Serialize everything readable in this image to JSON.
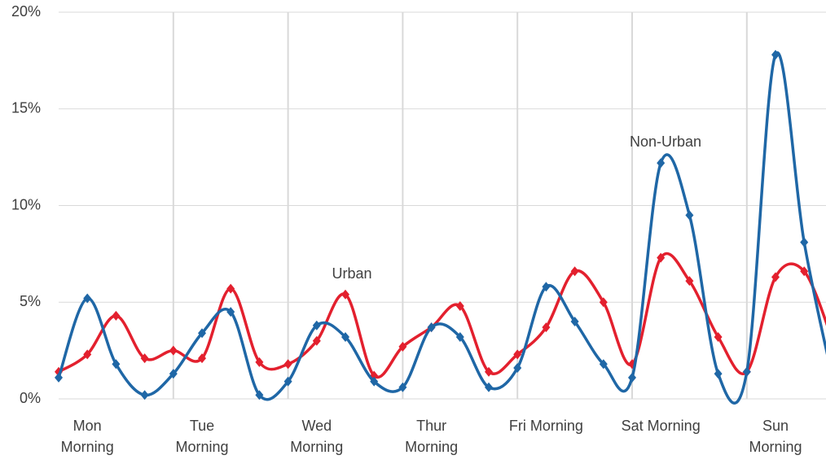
{
  "chart_data": {
    "type": "line",
    "smooth": true,
    "grid": true,
    "categories": [
      null,
      "Mon Morning",
      null,
      null,
      null,
      "Tue Morning",
      null,
      null,
      null,
      "Wed Morning",
      null,
      null,
      null,
      "Thur Morning",
      null,
      null,
      null,
      "Fri Morning",
      null,
      null,
      null,
      "Sat Morning",
      null,
      null,
      null,
      "Sun Morning",
      null,
      null
    ],
    "series": [
      {
        "name": "Urban",
        "color": "#e3202e",
        "values": [
          1.4,
          2.3,
          4.3,
          2.1,
          2.5,
          2.1,
          5.7,
          1.9,
          1.8,
          3.0,
          5.4,
          1.2,
          2.7,
          3.7,
          4.8,
          1.4,
          2.3,
          3.7,
          6.6,
          5.0,
          1.8,
          7.3,
          6.1,
          3.2,
          1.4,
          6.3,
          6.6,
          3.0
        ]
      },
      {
        "name": "Non-Urban",
        "color": "#1f67a6",
        "values": [
          1.1,
          5.2,
          1.8,
          0.2,
          1.3,
          3.4,
          4.5,
          0.2,
          0.9,
          3.8,
          3.2,
          0.9,
          0.6,
          3.7,
          3.2,
          0.6,
          1.6,
          5.8,
          4.0,
          1.8,
          1.1,
          12.2,
          9.5,
          1.3,
          1.4,
          17.8,
          8.1,
          1.0
        ]
      }
    ],
    "ylim": [
      0,
      20
    ],
    "yticks": [
      {
        "value": 0,
        "label": "0%"
      },
      {
        "value": 5,
        "label": "5%"
      },
      {
        "value": 10,
        "label": "10%"
      },
      {
        "value": 15,
        "label": "15%"
      },
      {
        "value": 20,
        "label": "20%"
      }
    ]
  }
}
